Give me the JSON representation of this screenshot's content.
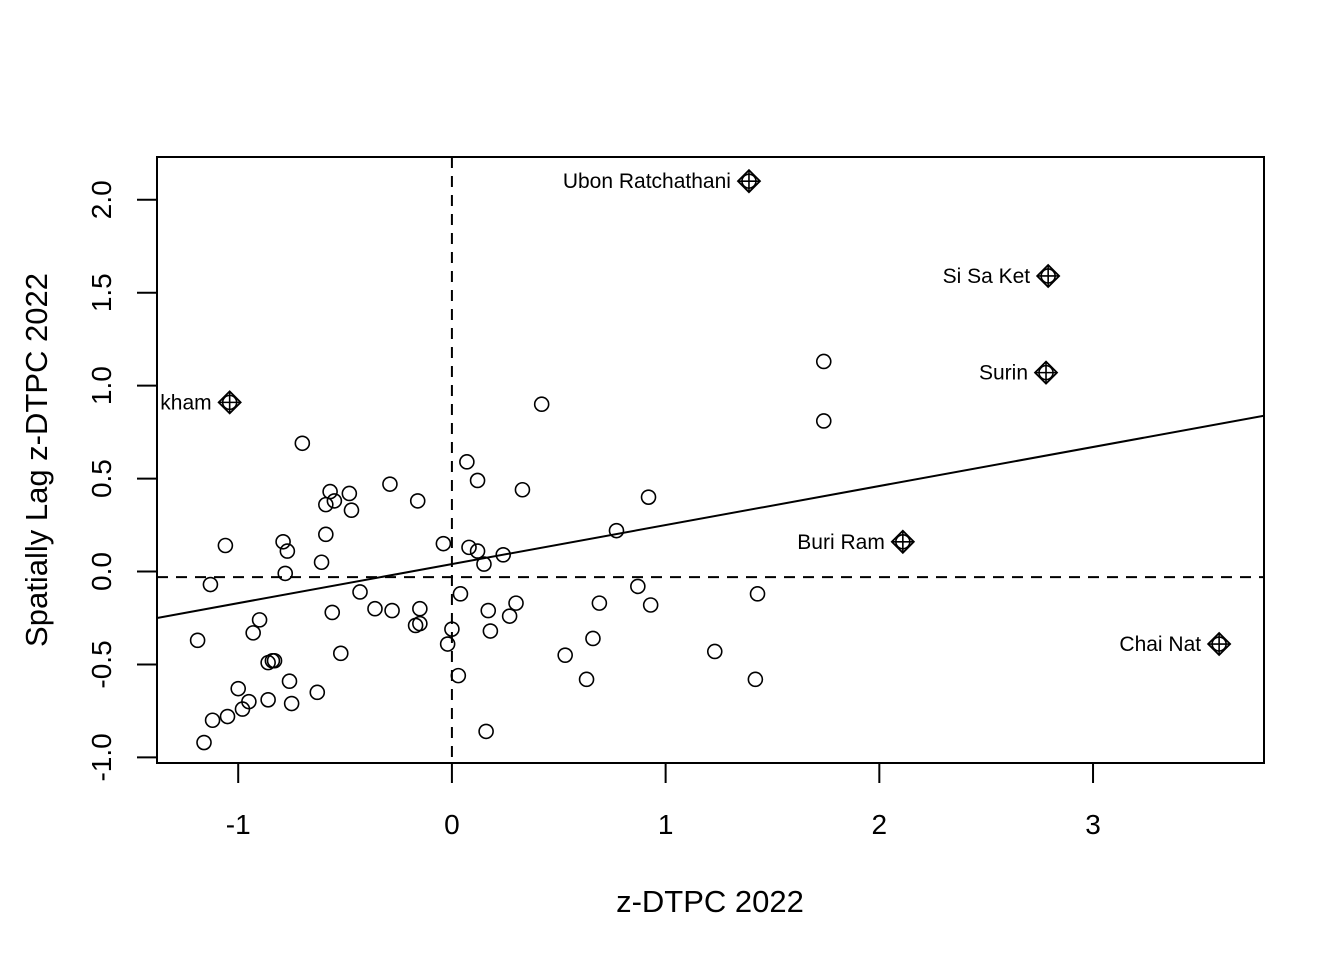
{
  "chart_data": {
    "type": "scatter",
    "title": "",
    "xlabel": "z-DTPC 2022",
    "ylabel": "Spatially Lag z-DTPC 2022",
    "xlim": [
      -1.38,
      3.8
    ],
    "ylim": [
      -1.03,
      2.23
    ],
    "x_ticks": [
      -1,
      0,
      1,
      2,
      3
    ],
    "x_tick_labels": [
      "-1",
      "0",
      "1",
      "2",
      "3"
    ],
    "y_ticks": [
      -1.0,
      -0.5,
      0.0,
      0.5,
      1.0,
      1.5,
      2.0
    ],
    "y_tick_labels": [
      "-1.0",
      "-0.5",
      "0.0",
      "0.5",
      "1.0",
      "1.5",
      "2.0"
    ],
    "grid": false,
    "reference_lines": {
      "x": 0,
      "y": -0.03,
      "style": "dashed"
    },
    "regression_line": {
      "intercept": 0.04,
      "slope": 0.21
    },
    "points": [
      [
        1.74,
        1.13
      ],
      [
        1.74,
        0.81
      ],
      [
        0.42,
        0.9
      ],
      [
        -0.7,
        0.69
      ],
      [
        0.07,
        0.59
      ],
      [
        0.12,
        0.49
      ],
      [
        0.33,
        0.44
      ],
      [
        -0.29,
        0.47
      ],
      [
        -0.48,
        0.42
      ],
      [
        -0.57,
        0.43
      ],
      [
        -0.55,
        0.38
      ],
      [
        -0.59,
        0.36
      ],
      [
        -0.47,
        0.33
      ],
      [
        -0.16,
        0.38
      ],
      [
        0.92,
        0.4
      ],
      [
        0.77,
        0.22
      ],
      [
        -0.59,
        0.2
      ],
      [
        -0.79,
        0.16
      ],
      [
        -1.06,
        0.14
      ],
      [
        -0.77,
        0.11
      ],
      [
        -0.04,
        0.15
      ],
      [
        0.08,
        0.13
      ],
      [
        0.12,
        0.11
      ],
      [
        0.24,
        0.09
      ],
      [
        0.15,
        0.04
      ],
      [
        -0.61,
        0.05
      ],
      [
        -0.78,
        -0.01
      ],
      [
        -1.13,
        -0.07
      ],
      [
        -0.43,
        -0.11
      ],
      [
        0.87,
        -0.08
      ],
      [
        0.04,
        -0.12
      ],
      [
        1.43,
        -0.12
      ],
      [
        -0.36,
        -0.2
      ],
      [
        -0.28,
        -0.21
      ],
      [
        -0.15,
        -0.2
      ],
      [
        -0.56,
        -0.22
      ],
      [
        0.17,
        -0.21
      ],
      [
        0.3,
        -0.17
      ],
      [
        0.69,
        -0.17
      ],
      [
        0.93,
        -0.18
      ],
      [
        0.27,
        -0.24
      ],
      [
        -0.9,
        -0.26
      ],
      [
        -0.17,
        -0.29
      ],
      [
        -0.15,
        -0.28
      ],
      [
        0.0,
        -0.31
      ],
      [
        0.18,
        -0.32
      ],
      [
        -0.93,
        -0.33
      ],
      [
        -1.19,
        -0.37
      ],
      [
        0.66,
        -0.36
      ],
      [
        -0.02,
        -0.39
      ],
      [
        0.53,
        -0.45
      ],
      [
        -0.52,
        -0.44
      ],
      [
        1.23,
        -0.43
      ],
      [
        -0.86,
        -0.49
      ],
      [
        -0.84,
        -0.48
      ],
      [
        -0.83,
        -0.48
      ],
      [
        0.03,
        -0.56
      ],
      [
        0.63,
        -0.58
      ],
      [
        1.42,
        -0.58
      ],
      [
        -0.76,
        -0.59
      ],
      [
        -1.0,
        -0.63
      ],
      [
        -0.63,
        -0.65
      ],
      [
        -0.95,
        -0.7
      ],
      [
        -0.75,
        -0.71
      ],
      [
        -0.86,
        -0.69
      ],
      [
        -0.98,
        -0.74
      ],
      [
        -1.05,
        -0.78
      ],
      [
        -1.12,
        -0.8
      ],
      [
        0.16,
        -0.86
      ],
      [
        -1.16,
        -0.92
      ]
    ],
    "influential_points": [
      {
        "name": "Ubon Ratchathani",
        "x": 1.39,
        "y": 2.1
      },
      {
        "name": "Si Sa Ket",
        "x": 2.79,
        "y": 1.59
      },
      {
        "name": "Surin",
        "x": 2.78,
        "y": 1.07
      },
      {
        "name": "kham",
        "x": -1.04,
        "y": 0.91
      },
      {
        "name": "Buri Ram",
        "x": 2.11,
        "y": 0.16
      },
      {
        "name": "Chai Nat",
        "x": 3.59,
        "y": -0.39
      }
    ]
  }
}
